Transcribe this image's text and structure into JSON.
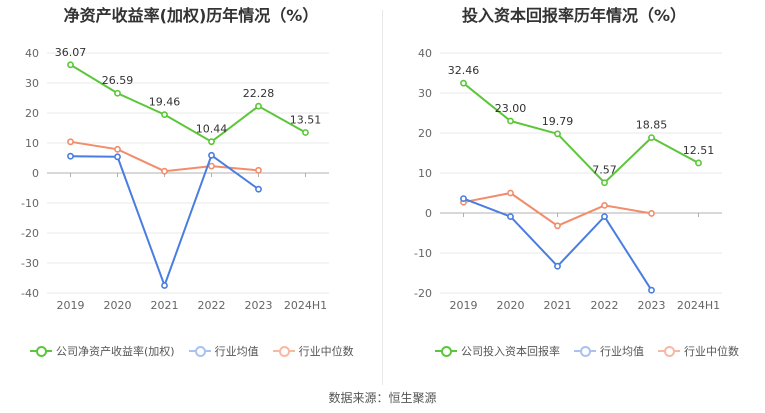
{
  "colors": {
    "company": "#5cc63a",
    "industry_avg": "#4a7de0",
    "industry_median": "#f28c6a",
    "grid": "#e8e8e8"
  },
  "source": "数据来源：恒生聚源",
  "chart_data": [
    {
      "type": "line",
      "title": "净资产收益率(加权)历年情况（%）",
      "categories": [
        "2019",
        "2020",
        "2021",
        "2022",
        "2023",
        "2024H1"
      ],
      "ylim": [
        -40,
        40
      ],
      "yticks": [
        40,
        30,
        20,
        10,
        0,
        -10,
        -20,
        -30,
        -40
      ],
      "legend": [
        "公司净资产收益率(加权)",
        "行业均值",
        "行业中位数"
      ],
      "series": [
        {
          "name": "公司净资产收益率(加权)",
          "values": [
            36.07,
            26.59,
            19.46,
            10.44,
            22.28,
            13.51
          ],
          "labels": [
            "36.07",
            "26.59",
            "19.46",
            "10.44",
            "22.28",
            "13.51"
          ]
        },
        {
          "name": "行业均值",
          "values": [
            5.6,
            5.4,
            -37.5,
            5.9,
            -5.4,
            null
          ]
        },
        {
          "name": "行业中位数",
          "values": [
            10.4,
            7.9,
            0.6,
            2.3,
            0.9,
            null
          ]
        }
      ]
    },
    {
      "type": "line",
      "title": "投入资本回报率历年情况（%）",
      "categories": [
        "2019",
        "2020",
        "2021",
        "2022",
        "2023",
        "2024H1"
      ],
      "ylim": [
        -20,
        40
      ],
      "yticks": [
        40,
        30,
        20,
        10,
        0,
        -10,
        -20
      ],
      "legend": [
        "公司投入资本回报率",
        "行业均值",
        "行业中位数"
      ],
      "series": [
        {
          "name": "公司投入资本回报率",
          "values": [
            32.46,
            23.0,
            19.79,
            7.57,
            18.85,
            12.51
          ],
          "labels": [
            "32.46",
            "23.00",
            "19.79",
            "7.57",
            "18.85",
            "12.51"
          ]
        },
        {
          "name": "行业均值",
          "values": [
            3.6,
            -0.9,
            -13.3,
            -0.9,
            -19.3,
            null
          ]
        },
        {
          "name": "行业中位数",
          "values": [
            2.7,
            5.0,
            -3.2,
            1.9,
            -0.1,
            null
          ]
        }
      ]
    }
  ]
}
